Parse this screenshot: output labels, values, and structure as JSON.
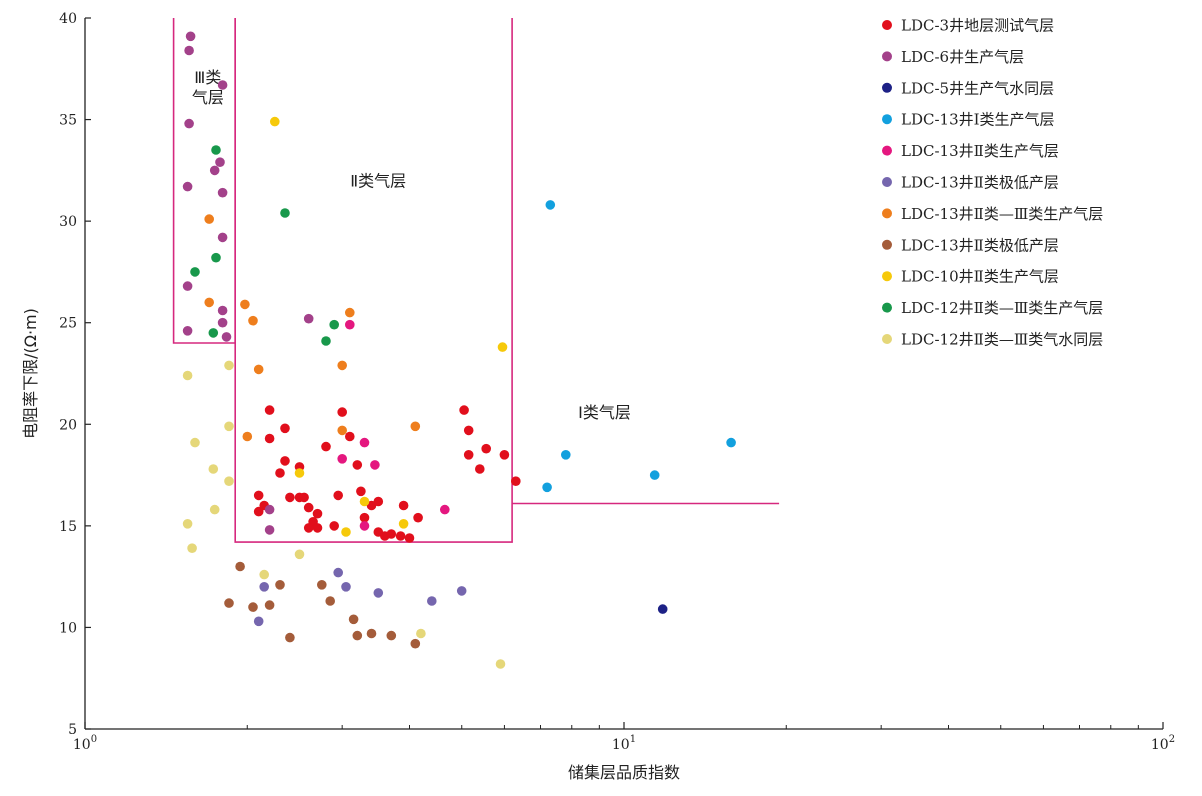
{
  "chart_data": {
    "type": "scatter",
    "x_scale": "log",
    "xlim": [
      1,
      100
    ],
    "ylim": [
      5,
      40
    ],
    "xlabel": "储集层品质指数",
    "ylabel": "电阻率下限/(Ω·m)",
    "x_ticks": [
      {
        "value": 1,
        "label": "10",
        "exp": "0"
      },
      {
        "value": 10,
        "label": "10",
        "exp": "1"
      },
      {
        "value": 100,
        "label": "10",
        "exp": "2"
      }
    ],
    "y_ticks": [
      5,
      10,
      15,
      20,
      25,
      30,
      35,
      40
    ],
    "legend_position": "top-right",
    "regions": [
      {
        "name": "Ⅲ类气层",
        "lines": [
          "Ⅲ类",
          "气层"
        ],
        "label_at": [
          1.69,
          36.8
        ],
        "path": [
          [
            1.46,
            40
          ],
          [
            1.46,
            24
          ],
          [
            1.9,
            24
          ],
          [
            1.9,
            40
          ]
        ]
      },
      {
        "name": "Ⅱ类气层",
        "lines": [
          "Ⅱ类气层"
        ],
        "label_at": [
          3.5,
          31.7
        ],
        "path": [
          [
            1.9,
            40
          ],
          [
            1.9,
            14.2
          ],
          [
            6.2,
            14.2
          ],
          [
            6.2,
            40
          ]
        ]
      },
      {
        "name": "Ⅰ类气层",
        "lines": [
          "Ⅰ类气层"
        ],
        "label_at": [
          9.2,
          20.3
        ],
        "path": [
          [
            6.2,
            16.1
          ],
          [
            19.4,
            16.1
          ]
        ]
      }
    ],
    "region_color": "#d6287e",
    "series": [
      {
        "name": "LDC-3井地层测试气层",
        "color": "#e10f1c",
        "points": [
          [
            2.1,
            16.5
          ],
          [
            2.15,
            16.0
          ],
          [
            2.1,
            15.7
          ],
          [
            2.2,
            20.7
          ],
          [
            2.2,
            19.3
          ],
          [
            2.3,
            17.6
          ],
          [
            2.35,
            18.2
          ],
          [
            2.35,
            19.8
          ],
          [
            2.4,
            16.4
          ],
          [
            2.5,
            16.4
          ],
          [
            2.55,
            16.4
          ],
          [
            2.5,
            17.9
          ],
          [
            2.6,
            15.9
          ],
          [
            2.65,
            15.2
          ],
          [
            2.7,
            15.6
          ],
          [
            2.7,
            14.9
          ],
          [
            2.6,
            14.9
          ],
          [
            2.8,
            18.9
          ],
          [
            2.9,
            15.0
          ],
          [
            2.95,
            16.5
          ],
          [
            3.0,
            20.6
          ],
          [
            3.1,
            19.4
          ],
          [
            3.2,
            18.0
          ],
          [
            3.25,
            16.7
          ],
          [
            3.3,
            15.4
          ],
          [
            3.4,
            16.0
          ],
          [
            3.5,
            16.2
          ],
          [
            3.5,
            14.7
          ],
          [
            3.6,
            14.5
          ],
          [
            3.7,
            14.6
          ],
          [
            3.85,
            14.5
          ],
          [
            3.9,
            16.0
          ],
          [
            4.0,
            14.4
          ],
          [
            4.15,
            15.4
          ],
          [
            5.05,
            20.7
          ],
          [
            5.15,
            19.7
          ],
          [
            5.15,
            18.5
          ],
          [
            5.4,
            17.8
          ],
          [
            5.55,
            18.8
          ],
          [
            6.0,
            18.5
          ],
          [
            6.3,
            17.2
          ]
        ]
      },
      {
        "name": "LDC-6井生产气层",
        "color": "#a3418a",
        "points": [
          [
            1.57,
            39.1
          ],
          [
            1.56,
            38.4
          ],
          [
            1.8,
            36.7
          ],
          [
            1.56,
            34.8
          ],
          [
            1.78,
            32.9
          ],
          [
            1.74,
            32.5
          ],
          [
            1.55,
            31.7
          ],
          [
            1.8,
            31.4
          ],
          [
            1.8,
            29.2
          ],
          [
            1.55,
            26.8
          ],
          [
            1.8,
            25.6
          ],
          [
            1.8,
            25.0
          ],
          [
            1.83,
            24.3
          ],
          [
            1.55,
            24.6
          ],
          [
            2.6,
            25.2
          ],
          [
            2.2,
            14.8
          ],
          [
            2.2,
            15.8
          ]
        ]
      },
      {
        "name": "LDC-5井生产气水同层",
        "color": "#1d2186",
        "points": [
          [
            11.8,
            10.9
          ]
        ]
      },
      {
        "name": "LDC-13井Ⅰ类生产气层",
        "color": "#12a0de",
        "points": [
          [
            7.3,
            30.8
          ],
          [
            7.8,
            18.5
          ],
          [
            7.2,
            16.9
          ],
          [
            11.4,
            17.5
          ],
          [
            15.8,
            19.1
          ]
        ]
      },
      {
        "name": "LDC-13井Ⅱ类生产气层",
        "color": "#e4177f",
        "points": [
          [
            3.3,
            19.1
          ],
          [
            3.0,
            18.3
          ],
          [
            3.45,
            18.0
          ],
          [
            3.1,
            24.9
          ],
          [
            4.65,
            15.8
          ],
          [
            3.3,
            15.0
          ]
        ]
      },
      {
        "name": "LDC-13井Ⅱ类极低产层",
        "color": "#7566ae",
        "points": [
          [
            2.15,
            12.0
          ],
          [
            2.1,
            10.3
          ],
          [
            2.95,
            12.7
          ],
          [
            3.05,
            12.0
          ],
          [
            3.5,
            11.7
          ],
          [
            4.4,
            11.3
          ],
          [
            5.0,
            11.8
          ]
        ]
      },
      {
        "name": "LDC-13井Ⅱ类—Ⅲ类生产气层",
        "color": "#ee7e1d",
        "points": [
          [
            1.7,
            30.1
          ],
          [
            1.7,
            26.0
          ],
          [
            1.98,
            25.9
          ],
          [
            2.05,
            25.1
          ],
          [
            3.1,
            25.5
          ],
          [
            3.0,
            22.9
          ],
          [
            2.1,
            22.7
          ],
          [
            2.0,
            19.4
          ],
          [
            4.1,
            19.9
          ],
          [
            3.0,
            19.7
          ]
        ]
      },
      {
        "name": "LDC-13井Ⅱ类极低产层",
        "color": "#a45c3a",
        "points": [
          [
            1.94,
            13.0
          ],
          [
            2.3,
            12.1
          ],
          [
            2.75,
            12.1
          ],
          [
            1.85,
            11.2
          ],
          [
            2.05,
            11.0
          ],
          [
            2.2,
            11.1
          ],
          [
            2.85,
            11.3
          ],
          [
            3.15,
            10.4
          ],
          [
            3.2,
            9.6
          ],
          [
            3.4,
            9.7
          ],
          [
            3.7,
            9.6
          ],
          [
            4.1,
            9.2
          ],
          [
            2.4,
            9.5
          ]
        ]
      },
      {
        "name": "LDC-10井Ⅱ类生产气层",
        "color": "#f6c90a",
        "points": [
          [
            2.25,
            34.9
          ],
          [
            5.95,
            23.8
          ],
          [
            2.5,
            17.6
          ],
          [
            3.3,
            16.2
          ],
          [
            3.9,
            15.1
          ],
          [
            3.05,
            14.7
          ]
        ]
      },
      {
        "name": "LDC-12井Ⅱ类—Ⅲ类生产气层",
        "color": "#18984b",
        "points": [
          [
            1.75,
            33.5
          ],
          [
            2.35,
            30.4
          ],
          [
            1.75,
            28.2
          ],
          [
            1.6,
            27.5
          ],
          [
            2.9,
            24.9
          ],
          [
            2.8,
            24.1
          ],
          [
            1.73,
            24.5
          ]
        ]
      },
      {
        "name": "LDC-12井Ⅱ类—Ⅲ类气水同层",
        "color": "#e5d779",
        "points": [
          [
            1.55,
            22.4
          ],
          [
            1.85,
            22.9
          ],
          [
            1.85,
            19.9
          ],
          [
            1.6,
            19.1
          ],
          [
            1.73,
            17.8
          ],
          [
            1.85,
            17.2
          ],
          [
            1.55,
            15.1
          ],
          [
            1.74,
            15.8
          ],
          [
            1.58,
            13.9
          ],
          [
            2.5,
            13.6
          ],
          [
            2.15,
            12.6
          ],
          [
            4.2,
            9.7
          ],
          [
            5.9,
            8.2
          ]
        ]
      }
    ]
  }
}
